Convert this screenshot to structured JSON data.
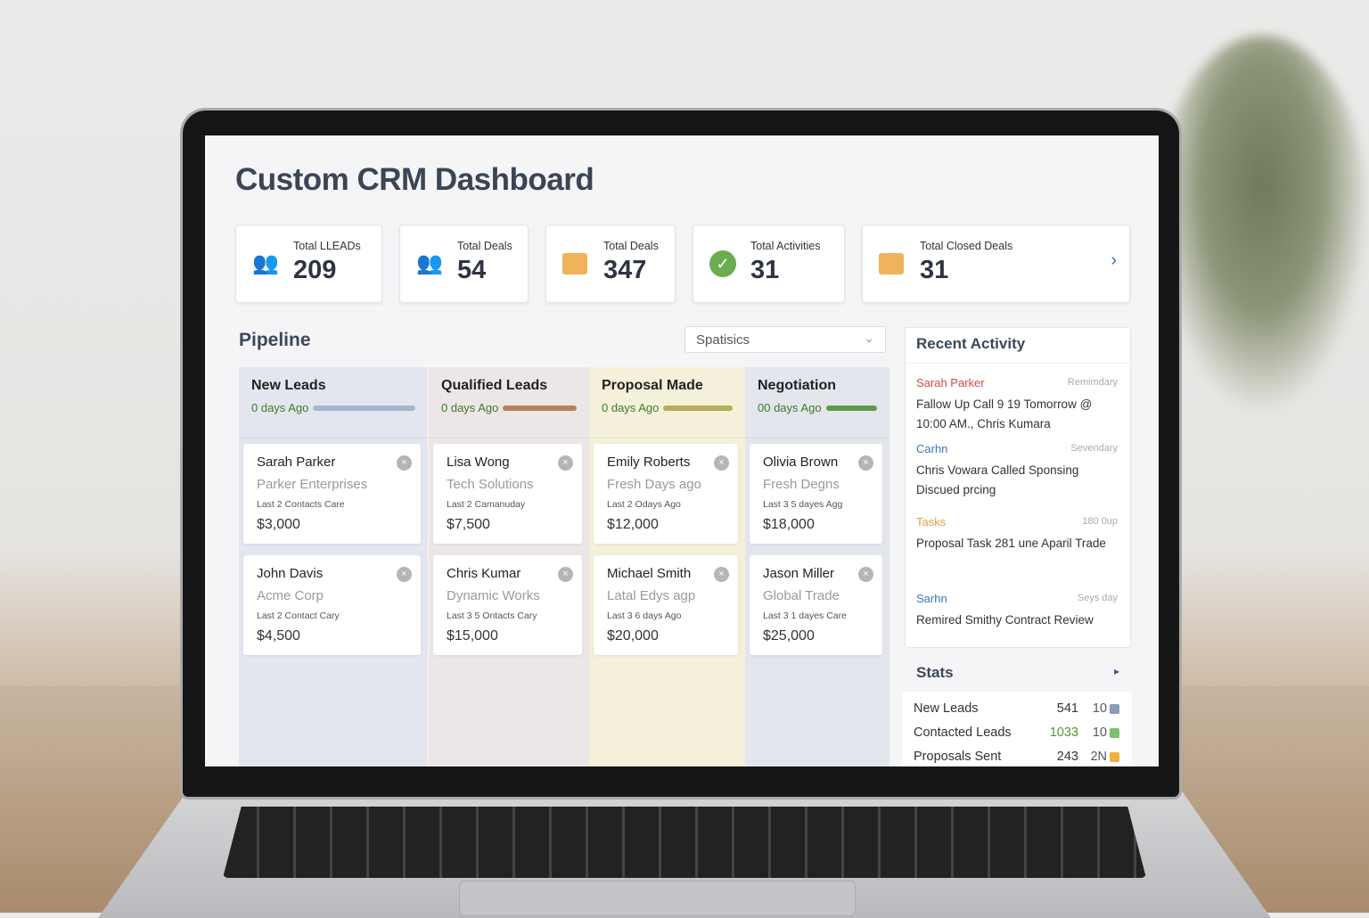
{
  "header": {
    "title": "Custom CRM Dashboard"
  },
  "kpis": [
    {
      "label": "Total LLEADs",
      "value": "209",
      "icon": "users-icon",
      "color": "#3a6fb0"
    },
    {
      "label": "Total Deals",
      "value": "54",
      "icon": "user-group-icon",
      "color": "#3a6fb0"
    },
    {
      "label": "Total Deals",
      "value": "347",
      "icon": "folder-icon",
      "color": "#f0b25a"
    },
    {
      "label": "Total Activities",
      "value": "31",
      "icon": "check-circle-icon",
      "color": "#6aac4e"
    },
    {
      "label": "Total Closed Deals",
      "value": "31",
      "icon": "folder-icon",
      "color": "#f0b25a"
    }
  ],
  "pipeline": {
    "title": "Pipeline",
    "select_value": "Spatisics",
    "columns": [
      {
        "name": "New Leads",
        "age": "0 days Ago",
        "bg": "#e3e6ee",
        "bar": "#a6b6cc",
        "cards": [
          {
            "name": "Sarah Parker",
            "company": "Parker Enterprises",
            "last": "Last 2 Contacts Care",
            "amount": "$3,000"
          },
          {
            "name": "John Davis",
            "company": "Acme Corp",
            "last": "Last 2 Contact Cary",
            "amount": "$4,500"
          }
        ]
      },
      {
        "name": "Qualified Leads",
        "age": "0 days Ago",
        "bg": "#ede6e7",
        "bar": "#b5825a",
        "cards": [
          {
            "name": "Lisa Wong",
            "company": "Tech Solutions",
            "last": "Last 2 Camanuday",
            "amount": "$7,500"
          },
          {
            "name": "Chris Kumar",
            "company": "Dynamic Works",
            "last": "Last 3 5 Ontacts Cary",
            "amount": "$15,000"
          }
        ]
      },
      {
        "name": "Proposal Made",
        "age": "0 days Ago",
        "bg": "#f4f0d9",
        "bar": "#b3ad5e",
        "cards": [
          {
            "name": "Emily Roberts",
            "company": "Fresh Days ago",
            "last": "Last 2 Odays Ago",
            "amount": "$12,000"
          },
          {
            "name": "Michael Smith",
            "company": "Latal Edys agp",
            "last": "Last 3 6 days Ago",
            "amount": "$20,000"
          }
        ]
      },
      {
        "name": "Negotiation",
        "age": "00 days Ago",
        "bg": "#e3e6ed",
        "bar": "#5e9a4c",
        "cards": [
          {
            "name": "Olivia Brown",
            "company": "Fresh Degns",
            "last": "Last 3 5 dayes Agg",
            "amount": "$18,000"
          },
          {
            "name": "Jason Miller",
            "company": "Global Trade",
            "last": "Last 3 1 dayes Care",
            "amount": "$25,000"
          }
        ]
      }
    ]
  },
  "activity": {
    "title": "Recent Activity",
    "items": [
      {
        "who": "Sarah Parker",
        "when": "Remimdary",
        "text": "Fallow Up Call 9 19 Tomorrow @ 10:00 AM., Chris Kumara",
        "color": "#d24a4a"
      },
      {
        "who": "Carhn",
        "when": "Sevendary",
        "text": "Chris Vowara Called Sponsing Discued prcing",
        "color": "#3a74c0"
      },
      {
        "who": "Tasks",
        "when": "180 0up",
        "text": "Proposal Task 281 une Aparil Trade",
        "color": "#e8a042"
      },
      {
        "who": "Sarhn",
        "when": "Seys day",
        "text": "Remired Smithy Contract Review",
        "color": "#3a74c0"
      }
    ]
  },
  "stats": {
    "title": "Stats",
    "rows": [
      {
        "label": "New Leads",
        "value": "541",
        "pct": "10",
        "color": "#8a9bb5",
        "valcolor": "#333"
      },
      {
        "label": "Contacted Leads",
        "value": "1033",
        "pct": "10",
        "color": "#7cc06a",
        "valcolor": "#4a9a2e"
      },
      {
        "label": "Proposals Sent",
        "value": "243",
        "pct": "2N",
        "color": "#f0b040",
        "valcolor": "#333"
      }
    ]
  }
}
